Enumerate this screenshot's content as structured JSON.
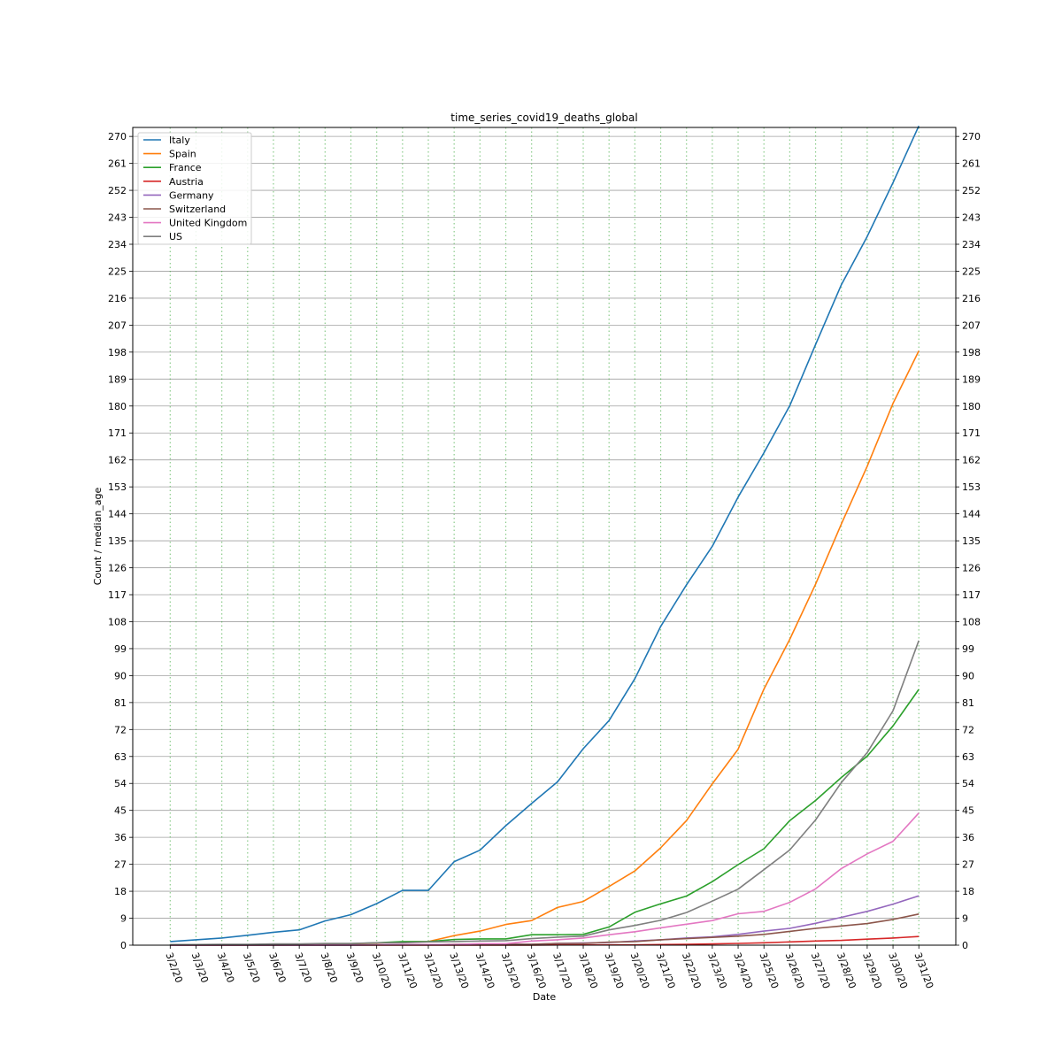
{
  "chart_data": {
    "type": "line",
    "title": "time_series_covid19_deaths_global",
    "xlabel": "Date",
    "ylabel": "Count / median_age",
    "ylim": [
      0,
      273
    ],
    "yticks": [
      0,
      9,
      18,
      27,
      36,
      45,
      54,
      63,
      72,
      81,
      90,
      99,
      108,
      117,
      126,
      135,
      144,
      153,
      162,
      171,
      180,
      189,
      198,
      207,
      216,
      225,
      234,
      243,
      252,
      261,
      270
    ],
    "grid": "horizontal solid gray, vertical dotted green",
    "legend": "top-left",
    "categories": [
      "3/2/20",
      "3/3/20",
      "3/4/20",
      "3/5/20",
      "3/6/20",
      "3/7/20",
      "3/8/20",
      "3/9/20",
      "3/10/20",
      "3/11/20",
      "3/12/20",
      "3/13/20",
      "3/14/20",
      "3/15/20",
      "3/16/20",
      "3/17/20",
      "3/18/20",
      "3/19/20",
      "3/20/20",
      "3/21/20",
      "3/22/20",
      "3/23/20",
      "3/24/20",
      "3/25/20",
      "3/26/20",
      "3/27/20",
      "3/28/20",
      "3/29/20",
      "3/30/20",
      "3/31/20"
    ],
    "series": [
      {
        "name": "Italy",
        "color": "#1f77b4",
        "values": [
          1.2,
          1.8,
          2.4,
          3.3,
          4.3,
          5.1,
          8.1,
          10.2,
          13.9,
          18.3,
          18.3,
          27.9,
          31.7,
          39.9,
          47.3,
          54.5,
          65.6,
          75.0,
          89.0,
          106.4,
          120.3,
          133.2,
          149.6,
          164.4,
          180.1,
          200.5,
          220.5,
          236.6,
          254.6,
          273.5
        ]
      },
      {
        "name": "Spain",
        "color": "#ff7f0e",
        "values": [
          0.0,
          0.0,
          0.0,
          0.0,
          0.1,
          0.2,
          0.3,
          0.4,
          0.7,
          1.1,
          1.2,
          3.2,
          4.7,
          6.9,
          8.2,
          12.6,
          14.6,
          19.6,
          24.8,
          32.5,
          41.6,
          53.9,
          65.4,
          85.5,
          102.1,
          120.5,
          140.6,
          159.9,
          180.9,
          198.4
        ]
      },
      {
        "name": "France",
        "color": "#2ca02c",
        "values": [
          0.0,
          0.1,
          0.1,
          0.1,
          0.2,
          0.2,
          0.4,
          0.5,
          0.8,
          1.2,
          1.2,
          1.9,
          2.1,
          2.1,
          3.5,
          3.5,
          3.6,
          6.1,
          11.0,
          13.8,
          16.4,
          21.2,
          26.9,
          32.2,
          41.6,
          48.3,
          56.0,
          63.1,
          73.2,
          85.4
        ]
      },
      {
        "name": "Austria",
        "color": "#d62728",
        "values": [
          0.0,
          0.0,
          0.0,
          0.0,
          0.0,
          0.0,
          0.0,
          0.0,
          0.0,
          0.0,
          0.0,
          0.0,
          0.0,
          0.0,
          0.0,
          0.1,
          0.1,
          0.1,
          0.1,
          0.2,
          0.3,
          0.4,
          0.6,
          0.8,
          1.1,
          1.4,
          1.6,
          2.0,
          2.4,
          2.9
        ]
      },
      {
        "name": "Germany",
        "color": "#9467bd",
        "values": [
          0.0,
          0.0,
          0.0,
          0.0,
          0.0,
          0.0,
          0.0,
          0.0,
          0.1,
          0.1,
          0.1,
          0.2,
          0.2,
          0.3,
          0.3,
          0.6,
          0.7,
          0.9,
          1.4,
          1.8,
          2.4,
          2.8,
          3.6,
          4.7,
          5.6,
          7.3,
          9.3,
          11.3,
          13.7,
          16.5
        ]
      },
      {
        "name": "Switzerland",
        "color": "#8c564b",
        "values": [
          0.0,
          0.0,
          0.0,
          0.0,
          0.0,
          0.1,
          0.1,
          0.1,
          0.1,
          0.1,
          0.1,
          0.3,
          0.3,
          0.3,
          0.3,
          0.6,
          0.6,
          1.0,
          1.2,
          1.8,
          2.2,
          2.6,
          3.0,
          3.6,
          4.6,
          5.6,
          6.4,
          7.2,
          8.6,
          10.4
        ]
      },
      {
        "name": "United Kingdom",
        "color": "#e377c2",
        "values": [
          0.0,
          0.0,
          0.0,
          0.0,
          0.0,
          0.0,
          0.1,
          0.1,
          0.1,
          0.2,
          0.2,
          0.2,
          0.5,
          0.5,
          1.4,
          1.8,
          2.4,
          3.5,
          4.5,
          5.8,
          7.0,
          8.2,
          10.5,
          11.3,
          14.3,
          18.8,
          25.6,
          30.5,
          34.7,
          44.1
        ]
      },
      {
        "name": "US",
        "color": "#7f7f7f",
        "values": [
          0.2,
          0.2,
          0.3,
          0.3,
          0.4,
          0.4,
          0.6,
          0.6,
          0.8,
          0.8,
          1.1,
          1.2,
          1.4,
          1.5,
          2.2,
          2.7,
          3.0,
          5.1,
          6.6,
          8.3,
          10.9,
          14.7,
          18.7,
          25.2,
          31.8,
          41.8,
          54.3,
          64.3,
          78.3,
          101.7
        ]
      }
    ]
  }
}
